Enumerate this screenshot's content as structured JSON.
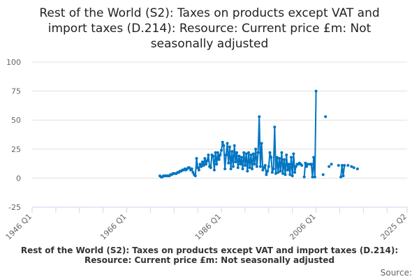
{
  "chart_data": {
    "type": "line",
    "title": "Rest of the World (S2): Taxes on products except VAT and import taxes (D.214): Resource: Current price £m: Not seasonally adjusted",
    "title_lines": [
      "Rest of the World (S2): Taxes on products except VAT and",
      "import taxes (D.214): Resource: Current price £m: Not",
      "seasonally adjusted"
    ],
    "footer_title": "Rest of the World (S2): Taxes on products except VAT and import taxes (D.214): Resource: Current price £m: Not seasonally adjusted",
    "source_label": "Source:",
    "xlabel": "",
    "ylabel": "",
    "ylim": [
      -25,
      100
    ],
    "yticks": [
      100,
      75,
      50,
      25,
      0,
      -25
    ],
    "xlim_quarter_index": [
      0,
      317
    ],
    "xtick_labels": [
      {
        "label": "1946 Q1",
        "q": 0
      },
      {
        "label": "1966 Q1",
        "q": 80
      },
      {
        "label": "1986 Q1",
        "q": 160
      },
      {
        "label": "2006 Q1",
        "q": 240
      },
      {
        "label": "2025 Q2",
        "q": 317
      }
    ],
    "series_color": "#0075c2",
    "grid": true,
    "start_quarter": "1973 Q1",
    "start_quarter_index": 108,
    "values": [
      2,
      1,
      1,
      2,
      2,
      2,
      2,
      2,
      2,
      3,
      3,
      4,
      4,
      4,
      4,
      5,
      5,
      6,
      6,
      7,
      7,
      8,
      7,
      8,
      9,
      9,
      7,
      8,
      5,
      3,
      2,
      17,
      9,
      7,
      12,
      10,
      14,
      11,
      17,
      12,
      15,
      20,
      10,
      9,
      20,
      19,
      7,
      22,
      12,
      22,
      16,
      20,
      24,
      31,
      28,
      8,
      20,
      30,
      13,
      27,
      8,
      23,
      10,
      28,
      14,
      22,
      9,
      19,
      12,
      18,
      8,
      22,
      11,
      21,
      6,
      22,
      9,
      20,
      8,
      21,
      12,
      25,
      10,
      22,
      53,
      10,
      30,
      7,
      9,
      11,
      3,
      6,
      10,
      22,
      18,
      5,
      8,
      44,
      4,
      18,
      5,
      17,
      6,
      22,
      4,
      16,
      3,
      20,
      7,
      12,
      3,
      18,
      2,
      21,
      5,
      10,
      12,
      12,
      13,
      12,
      11,
      null,
      1,
      13,
      10,
      12,
      null,
      12,
      12,
      1,
      18,
      1,
      75,
      null,
      null,
      null,
      null,
      null,
      3,
      null,
      53,
      null,
      null,
      10,
      null,
      12,
      null,
      null,
      null,
      null,
      null,
      11,
      null,
      1,
      11,
      2,
      11,
      null,
      null,
      11,
      null,
      null,
      10,
      null,
      9,
      null,
      null,
      8
    ]
  }
}
